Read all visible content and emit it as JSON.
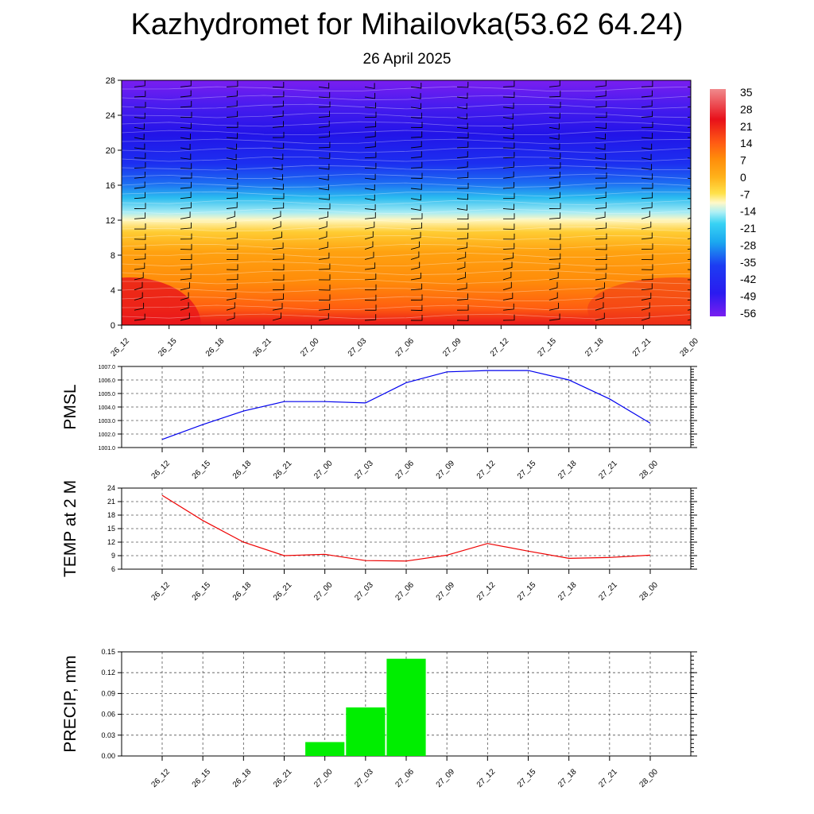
{
  "title": "Kazhydromet for Mihailovka(53.62 64.24)",
  "subtitle": "26 April 2025",
  "times": [
    "26_12",
    "26_15",
    "26_18",
    "26_21",
    "27_00",
    "27_03",
    "27_06",
    "27_09",
    "27_12",
    "27_15",
    "27_18",
    "27_21",
    "28_00"
  ],
  "chart_data": [
    {
      "type": "heatmap",
      "yticks": [
        "0",
        "4",
        "8",
        "12",
        "16",
        "20",
        "24",
        "28"
      ],
      "ylim": [
        0,
        28
      ],
      "colorbar_labels": [
        "35",
        "28",
        "21",
        "14",
        "7",
        "0",
        "-7",
        "-14",
        "-21",
        "-28",
        "-35",
        "-42",
        "-49",
        "-56"
      ],
      "colorbar_range": [
        -60,
        38
      ],
      "colors": {
        "low": "#6a1ae8",
        "mid": "#ffffff",
        "high": "#e41a1a"
      }
    },
    {
      "type": "line",
      "ylabel": "PMSL",
      "ylim": [
        1001.0,
        1007.0
      ],
      "yticks": [
        "1001.0",
        "1002.0",
        "1003.0",
        "1004.0",
        "1005.0",
        "1006.0",
        "1007.0"
      ],
      "values": [
        1001.6,
        1002.7,
        1003.7,
        1004.4,
        1004.4,
        1004.3,
        1005.8,
        1006.6,
        1006.7,
        1006.7,
        1006.0,
        1004.6,
        1002.8
      ],
      "color": "#0000ee"
    },
    {
      "type": "line",
      "ylabel": "TEMP at 2 M",
      "ylim": [
        6,
        24
      ],
      "yticks": [
        "6",
        "9",
        "12",
        "15",
        "18",
        "21",
        "24"
      ],
      "values": [
        22.4,
        16.8,
        12.0,
        9.0,
        9.3,
        7.9,
        7.8,
        9.1,
        11.7,
        10.0,
        8.4,
        8.6,
        9.1
      ],
      "color": "#ee0000"
    },
    {
      "type": "bar",
      "ylabel": "PRECIP, mm",
      "ylim": [
        0,
        0.15
      ],
      "yticks": [
        "0.00",
        "0.03",
        "0.06",
        "0.09",
        "0.12",
        "0.15"
      ],
      "values": [
        0,
        0,
        0,
        0,
        0.02,
        0.07,
        0.14,
        0,
        0,
        0,
        0,
        0,
        0
      ],
      "color": "#00ee00"
    }
  ]
}
